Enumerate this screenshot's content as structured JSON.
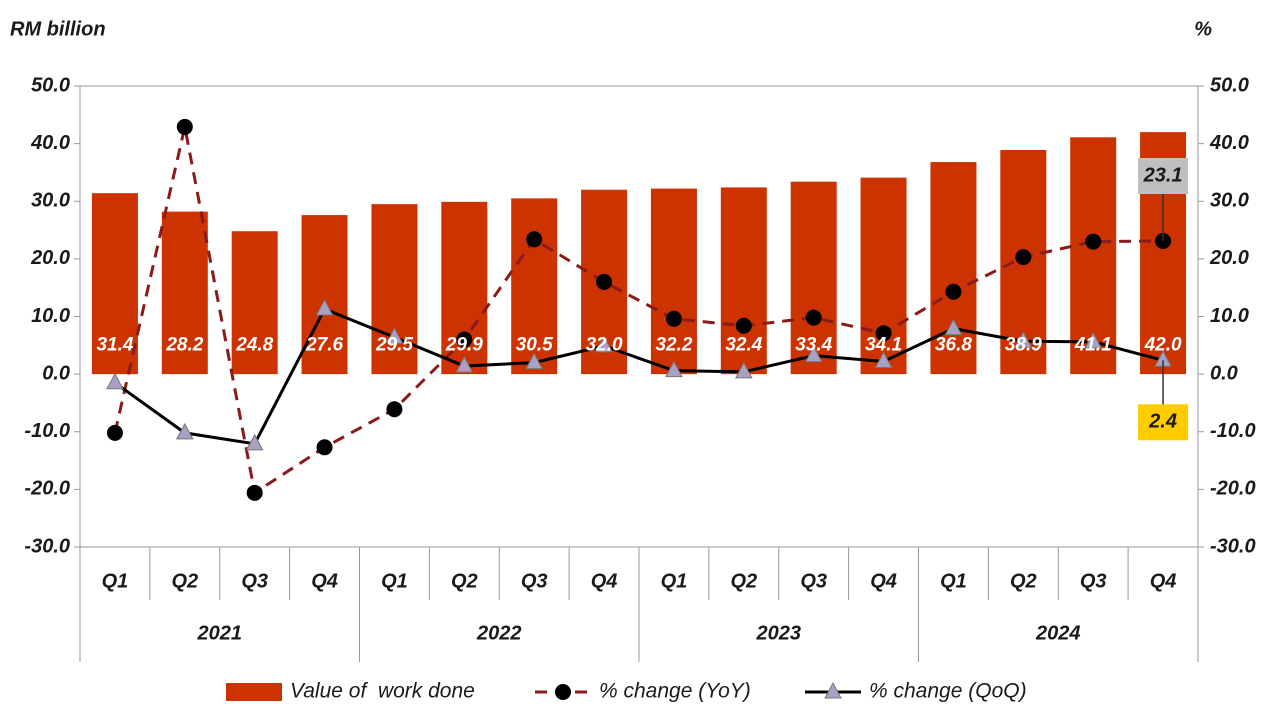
{
  "chart_data": {
    "type": "bar",
    "y_label": "RM billion",
    "y2_label": "%",
    "categories": [
      "Q1",
      "Q2",
      "Q3",
      "Q4",
      "Q1",
      "Q2",
      "Q3",
      "Q4",
      "Q1",
      "Q2",
      "Q3",
      "Q4",
      "Q1",
      "Q2",
      "Q3",
      "Q4"
    ],
    "groups": [
      "2021",
      "2022",
      "2023",
      "2024"
    ],
    "ylim": [
      -30,
      50
    ],
    "yticks": [
      {
        "value": 50,
        "label": "50.0"
      },
      {
        "value": 40,
        "label": "40.0"
      },
      {
        "value": 30,
        "label": "30.0"
      },
      {
        "value": 20,
        "label": "20.0"
      },
      {
        "value": 10,
        "label": "10.0"
      },
      {
        "value": 0,
        "label": "0.0"
      },
      {
        "value": -10,
        "label": "-10.0"
      },
      {
        "value": -20,
        "label": "-20.0"
      },
      {
        "value": -30,
        "label": "-30.0"
      }
    ],
    "y2lim": [
      -30,
      50
    ],
    "y2ticks": [
      {
        "value": 50,
        "label": "50.0"
      },
      {
        "value": 40,
        "label": "40.0"
      },
      {
        "value": 30,
        "label": "30.0"
      },
      {
        "value": 20,
        "label": "20.0"
      },
      {
        "value": 10,
        "label": "10.0"
      },
      {
        "value": 0,
        "label": "0.0"
      },
      {
        "value": -10,
        "label": "-10.0"
      },
      {
        "value": -20,
        "label": "-20.0"
      },
      {
        "value": -30,
        "label": "-30.0"
      }
    ],
    "series": [
      {
        "name": "Value of  work done",
        "type": "bar",
        "color": "#cc3300",
        "values": [
          31.4,
          28.2,
          24.8,
          27.6,
          29.5,
          29.9,
          30.5,
          32.0,
          32.2,
          32.4,
          33.4,
          34.1,
          36.8,
          38.9,
          41.1,
          42.0
        ],
        "value_labels": [
          "31.4",
          "28.2",
          "24.8",
          "27.6",
          "29.5",
          "29.9",
          "30.5",
          "32.0",
          "32.2",
          "32.4",
          "33.4",
          "34.1",
          "36.8",
          "38.9",
          "41.1",
          "42.0"
        ]
      },
      {
        "name": "% change (YoY)",
        "type": "line",
        "axis": "y2",
        "color": "#8b1a1a",
        "dashed": true,
        "marker": "circle",
        "marker_color": "#000000",
        "values": [
          -10.2,
          42.9,
          -20.6,
          -12.7,
          -6.1,
          6.0,
          23.4,
          16.0,
          9.6,
          8.4,
          9.8,
          7.1,
          14.3,
          20.3,
          23.0,
          23.1
        ],
        "label_last": true,
        "label_box": "#bfbfbf"
      },
      {
        "name": "% change (QoQ)",
        "type": "line",
        "axis": "y2",
        "color": "#000000",
        "dashed": false,
        "marker": "triangle",
        "marker_color": "#a9a0c4",
        "values": [
          -1.5,
          -10.2,
          -12.1,
          11.3,
          6.4,
          1.4,
          2.0,
          4.9,
          0.6,
          0.4,
          3.2,
          2.2,
          7.9,
          5.7,
          5.6,
          2.4
        ],
        "label_last": true,
        "label_box": "#ffcc00"
      }
    ]
  }
}
